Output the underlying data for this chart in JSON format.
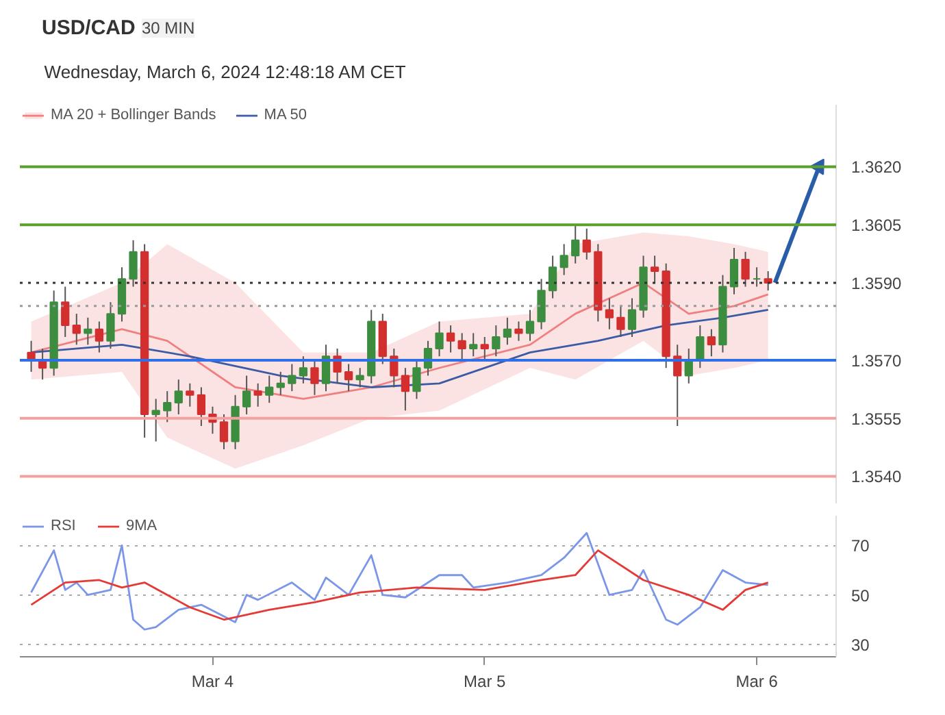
{
  "chart_data": [
    {
      "type": "candlestick",
      "title": "USD/CAD",
      "subtitle": "30 MIN",
      "annotations": [
        "Wednesday, March 6, 2024 12:48:18 AM CET"
      ],
      "x": [
        "2024-03-03T08:00",
        "2024-03-03T09:00",
        "2024-03-03T10:00",
        "2024-03-03T11:00",
        "2024-03-03T12:00",
        "2024-03-03T13:00",
        "2024-03-03T14:00",
        "2024-03-03T15:00",
        "2024-03-03T16:00",
        "2024-03-03T17:00",
        "2024-03-03T18:00",
        "2024-03-03T19:00",
        "2024-03-03T20:00",
        "2024-03-03T21:00",
        "2024-03-03T22:00",
        "2024-03-03T23:00",
        "2024-03-04T00:00",
        "2024-03-04T01:00",
        "2024-03-04T02:00",
        "2024-03-04T03:00",
        "2024-03-04T04:00",
        "2024-03-04T05:00",
        "2024-03-04T06:00",
        "2024-03-04T07:00",
        "2024-03-04T08:00",
        "2024-03-04T09:00",
        "2024-03-04T10:00",
        "2024-03-04T11:00",
        "2024-03-04T12:00",
        "2024-03-04T13:00",
        "2024-03-04T14:00",
        "2024-03-04T15:00",
        "2024-03-04T16:00",
        "2024-03-04T17:00",
        "2024-03-04T18:00",
        "2024-03-04T19:00",
        "2024-03-04T20:00",
        "2024-03-04T21:00",
        "2024-03-04T22:00",
        "2024-03-04T23:00",
        "2024-03-05T00:00",
        "2024-03-05T01:00",
        "2024-03-05T02:00",
        "2024-03-05T03:00",
        "2024-03-05T04:00",
        "2024-03-05T05:00",
        "2024-03-05T06:00",
        "2024-03-05T07:00",
        "2024-03-05T08:00",
        "2024-03-05T09:00",
        "2024-03-05T10:00",
        "2024-03-05T11:00",
        "2024-03-05T12:00",
        "2024-03-05T13:00",
        "2024-03-05T14:00",
        "2024-03-05T15:00",
        "2024-03-05T16:00",
        "2024-03-05T17:00",
        "2024-03-05T18:00",
        "2024-03-05T19:00",
        "2024-03-05T20:00",
        "2024-03-05T21:00",
        "2024-03-05T22:00",
        "2024-03-05T23:00",
        "2024-03-06T00:00",
        "2024-03-06T01:00"
      ],
      "ohlc": [
        [
          1.3572,
          1.3575,
          1.3567,
          1.357
        ],
        [
          1.357,
          1.3573,
          1.3565,
          1.3568
        ],
        [
          1.3568,
          1.3588,
          1.3566,
          1.3585
        ],
        [
          1.3585,
          1.3589,
          1.3576,
          1.3579
        ],
        [
          1.3579,
          1.3582,
          1.3574,
          1.3577
        ],
        [
          1.3577,
          1.3581,
          1.3574,
          1.3578
        ],
        [
          1.3578,
          1.358,
          1.3572,
          1.3575
        ],
        [
          1.3575,
          1.3585,
          1.3573,
          1.3582
        ],
        [
          1.3582,
          1.3594,
          1.358,
          1.3591
        ],
        [
          1.3591,
          1.3601,
          1.3589,
          1.3598
        ],
        [
          1.3598,
          1.36,
          1.355,
          1.3556
        ],
        [
          1.3556,
          1.356,
          1.3549,
          1.3557
        ],
        [
          1.3557,
          1.3562,
          1.3554,
          1.3559
        ],
        [
          1.3559,
          1.3565,
          1.3556,
          1.3562
        ],
        [
          1.3562,
          1.3564,
          1.3558,
          1.3561
        ],
        [
          1.3561,
          1.3563,
          1.3553,
          1.3556
        ],
        [
          1.3556,
          1.3558,
          1.3551,
          1.3554
        ],
        [
          1.3554,
          1.3556,
          1.3547,
          1.3549
        ],
        [
          1.3549,
          1.3561,
          1.3547,
          1.3558
        ],
        [
          1.3558,
          1.3566,
          1.3556,
          1.3562
        ],
        [
          1.3562,
          1.3564,
          1.3558,
          1.3561
        ],
        [
          1.3561,
          1.3566,
          1.3559,
          1.3563
        ],
        [
          1.3563,
          1.3567,
          1.3561,
          1.3564
        ],
        [
          1.3564,
          1.3569,
          1.3562,
          1.3566
        ],
        [
          1.3566,
          1.3571,
          1.3564,
          1.3568
        ],
        [
          1.3568,
          1.357,
          1.3561,
          1.3564
        ],
        [
          1.3564,
          1.3574,
          1.3562,
          1.3571
        ],
        [
          1.3571,
          1.3573,
          1.3564,
          1.3567
        ],
        [
          1.3567,
          1.3569,
          1.3562,
          1.3565
        ],
        [
          1.3565,
          1.3568,
          1.3563,
          1.3566
        ],
        [
          1.3566,
          1.3583,
          1.3564,
          1.358
        ],
        [
          1.358,
          1.3582,
          1.3569,
          1.3571
        ],
        [
          1.3571,
          1.3573,
          1.3563,
          1.3566
        ],
        [
          1.3566,
          1.3568,
          1.3557,
          1.3562
        ],
        [
          1.3562,
          1.357,
          1.356,
          1.3568
        ],
        [
          1.3568,
          1.3575,
          1.3566,
          1.3573
        ],
        [
          1.3573,
          1.358,
          1.3571,
          1.3577
        ],
        [
          1.3577,
          1.3579,
          1.3572,
          1.3575
        ],
        [
          1.3575,
          1.3577,
          1.357,
          1.3573
        ],
        [
          1.3573,
          1.3577,
          1.3571,
          1.3574
        ],
        [
          1.3574,
          1.3576,
          1.357,
          1.3573
        ],
        [
          1.3573,
          1.3579,
          1.3571,
          1.3576
        ],
        [
          1.3576,
          1.3581,
          1.3574,
          1.3578
        ],
        [
          1.3578,
          1.358,
          1.3575,
          1.3577
        ],
        [
          1.3577,
          1.3583,
          1.3575,
          1.358
        ],
        [
          1.358,
          1.3591,
          1.3578,
          1.3588
        ],
        [
          1.3588,
          1.3597,
          1.3586,
          1.3594
        ],
        [
          1.3594,
          1.36,
          1.3592,
          1.3597
        ],
        [
          1.3597,
          1.3605,
          1.3595,
          1.3601
        ],
        [
          1.3601,
          1.3604,
          1.3596,
          1.3598
        ],
        [
          1.3598,
          1.36,
          1.358,
          1.3583
        ],
        [
          1.3583,
          1.3586,
          1.3578,
          1.3581
        ],
        [
          1.3581,
          1.3584,
          1.3576,
          1.3578
        ],
        [
          1.3578,
          1.3586,
          1.3576,
          1.3583
        ],
        [
          1.3583,
          1.3597,
          1.3581,
          1.3594
        ],
        [
          1.3594,
          1.3597,
          1.359,
          1.3593
        ],
        [
          1.3593,
          1.3595,
          1.3568,
          1.3571
        ],
        [
          1.3571,
          1.3574,
          1.3553,
          1.3566
        ],
        [
          1.3566,
          1.3573,
          1.3564,
          1.357
        ],
        [
          1.357,
          1.3579,
          1.3568,
          1.3576
        ],
        [
          1.3576,
          1.3578,
          1.3571,
          1.3574
        ],
        [
          1.3574,
          1.3592,
          1.3572,
          1.3589
        ],
        [
          1.3589,
          1.3599,
          1.3587,
          1.3596
        ],
        [
          1.3596,
          1.3598,
          1.3589,
          1.3591
        ],
        [
          1.3591,
          1.3594,
          1.3589,
          1.3591
        ],
        [
          1.3591,
          1.3593,
          1.3588,
          1.359
        ]
      ],
      "series": [
        {
          "name": "MA 20 + Bollinger Bands",
          "type": "line",
          "color": "#f08080",
          "x": [
            "2024-03-03T08:00",
            "2024-03-03T16:00",
            "2024-03-03T20:00",
            "2024-03-04T02:00",
            "2024-03-04T08:00",
            "2024-03-04T14:00",
            "2024-03-04T20:00",
            "2024-03-05T04:00",
            "2024-03-05T08:00",
            "2024-03-05T14:00",
            "2024-03-05T18:00",
            "2024-03-05T22:00",
            "2024-03-06T01:00"
          ],
          "values": [
            1.3572,
            1.3578,
            1.3575,
            1.3563,
            1.356,
            1.3563,
            1.3568,
            1.3574,
            1.3582,
            1.359,
            1.3582,
            1.3584,
            1.3587
          ],
          "lower": [
            1.3565,
            1.3567,
            1.355,
            1.3542,
            1.3548,
            1.3555,
            1.3557,
            1.3568,
            1.3565,
            1.3575,
            1.3566,
            1.3568,
            1.357
          ],
          "upper": [
            1.358,
            1.359,
            1.36,
            1.359,
            1.3572,
            1.3572,
            1.358,
            1.3582,
            1.36,
            1.3603,
            1.3602,
            1.36,
            1.3598
          ]
        },
        {
          "name": "MA 50",
          "type": "line",
          "color": "#3b5ba5",
          "x": [
            "2024-03-03T08:00",
            "2024-03-03T16:00",
            "2024-03-03T22:00",
            "2024-03-04T06:00",
            "2024-03-04T14:00",
            "2024-03-04T20:00",
            "2024-03-05T04:00",
            "2024-03-05T10:00",
            "2024-03-05T16:00",
            "2024-03-05T21:00",
            "2024-03-06T01:00"
          ],
          "values": [
            1.3572,
            1.3574,
            1.3571,
            1.3566,
            1.3563,
            1.3564,
            1.3572,
            1.3575,
            1.3579,
            1.3581,
            1.3583
          ]
        }
      ],
      "ref_lines": [
        {
          "axis": "y",
          "value": 1.362,
          "color": "#5aa02c",
          "line_style": "solid"
        },
        {
          "axis": "y",
          "value": 1.3605,
          "color": "#5aa02c",
          "line_style": "solid"
        },
        {
          "axis": "y",
          "value": 1.359,
          "color": "#333333",
          "line_style": "dotted"
        },
        {
          "axis": "y",
          "value": 1.3584,
          "color": "#999999",
          "line_style": "dotted"
        },
        {
          "axis": "y",
          "value": 1.357,
          "color": "#2f6fe8",
          "line_style": "solid"
        },
        {
          "axis": "y",
          "value": 1.3555,
          "color": "#f4a0a0",
          "line_style": "solid"
        },
        {
          "axis": "y",
          "value": 1.354,
          "color": "#f4a0a0",
          "line_style": "solid"
        }
      ],
      "yticks": [
        {
          "value": 1.362,
          "label": "1.3620"
        },
        {
          "value": 1.3605,
          "label": "1.3605"
        },
        {
          "value": 1.359,
          "label": "1.3590"
        },
        {
          "value": 1.357,
          "label": "1.3570"
        },
        {
          "value": 1.3555,
          "label": "1.3555"
        },
        {
          "value": 1.354,
          "label": "1.3540"
        }
      ],
      "xlim": [
        "2024-03-03T07:00",
        "2024-03-06T07:00"
      ],
      "ylim": [
        1.3533,
        1.3636
      ],
      "tick_labels": "y",
      "legend": "top left"
    },
    {
      "type": "line",
      "series": [
        {
          "name": "RSI",
          "color": "#7b96e8",
          "x": [
            "2024-03-03T08:00",
            "2024-03-03T10:00",
            "2024-03-03T11:00",
            "2024-03-03T12:00",
            "2024-03-03T13:00",
            "2024-03-03T15:00",
            "2024-03-03T16:00",
            "2024-03-03T17:00",
            "2024-03-03T18:00",
            "2024-03-03T19:00",
            "2024-03-03T21:00",
            "2024-03-03T23:00",
            "2024-03-04T02:00",
            "2024-03-04T03:00",
            "2024-03-04T04:00",
            "2024-03-04T07:00",
            "2024-03-04T09:00",
            "2024-03-04T10:00",
            "2024-03-04T12:00",
            "2024-03-04T14:00",
            "2024-03-04T15:00",
            "2024-03-04T17:00",
            "2024-03-04T20:00",
            "2024-03-04T22:00",
            "2024-03-04T23:00",
            "2024-03-05T02:00",
            "2024-03-05T05:00",
            "2024-03-05T07:00",
            "2024-03-05T09:00",
            "2024-03-05T11:00",
            "2024-03-05T13:00",
            "2024-03-05T14:00",
            "2024-03-05T16:00",
            "2024-03-05T17:00",
            "2024-03-05T19:00",
            "2024-03-05T21:00",
            "2024-03-05T23:00",
            "2024-03-06T01:00"
          ],
          "values": [
            51,
            68,
            52,
            55,
            50,
            52,
            70,
            40,
            36,
            37,
            44,
            46,
            39,
            50,
            48,
            55,
            48,
            57,
            50,
            66,
            50,
            49,
            58,
            58,
            53,
            55,
            58,
            65,
            75,
            50,
            52,
            60,
            40,
            38,
            45,
            60,
            55,
            54
          ]
        },
        {
          "name": "9MA",
          "color": "#e53935",
          "x": [
            "2024-03-03T08:00",
            "2024-03-03T11:00",
            "2024-03-03T14:00",
            "2024-03-03T16:00",
            "2024-03-03T18:00",
            "2024-03-03T22:00",
            "2024-03-04T01:00",
            "2024-03-04T05:00",
            "2024-03-04T09:00",
            "2024-03-04T13:00",
            "2024-03-04T18:00",
            "2024-03-05T00:00",
            "2024-03-05T05:00",
            "2024-03-05T08:00",
            "2024-03-05T10:00",
            "2024-03-05T14:00",
            "2024-03-05T18:00",
            "2024-03-05T21:00",
            "2024-03-05T23:00",
            "2024-03-06T01:00"
          ],
          "values": [
            46,
            55,
            56,
            53,
            55,
            45,
            40,
            44,
            47,
            51,
            53,
            52,
            56,
            58,
            68,
            56,
            50,
            44,
            52,
            55
          ]
        }
      ],
      "xlim": [
        "2024-03-03T07:00",
        "2024-03-06T07:00"
      ],
      "ylim": [
        25,
        82
      ],
      "yticks": [
        30,
        50,
        70
      ],
      "xticks": [
        {
          "value": "2024-03-04",
          "label": "Mar 4"
        },
        {
          "value": "2024-03-05",
          "label": "Mar 5"
        },
        {
          "value": "2024-03-06",
          "label": "Mar 6"
        }
      ],
      "grid": "y",
      "legend": "top left"
    }
  ]
}
